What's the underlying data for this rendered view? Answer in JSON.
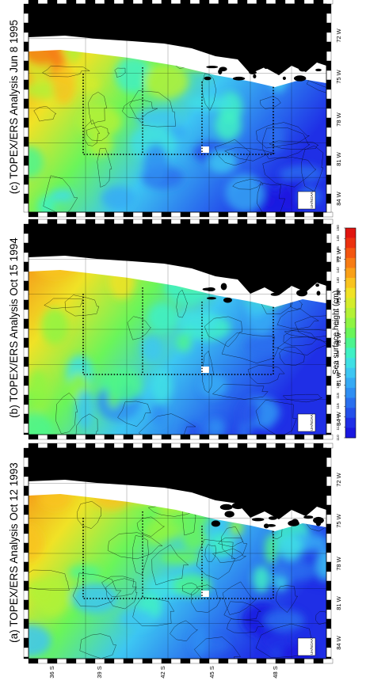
{
  "panels": [
    {
      "title": "(c) TOPEX/ERS Analysis Jun 8 1995"
    },
    {
      "title": "(b) TOPEX/ERS Analysis Oct 15 1994"
    },
    {
      "title": "(a) TOPEX/ERS Analysis Oct 12 1993"
    }
  ],
  "longitude_labels": [
    "72 W",
    "75 W",
    "78 W",
    "81 W",
    "84 W"
  ],
  "latitude_labels": [
    "36 S",
    "39 S",
    "42 S",
    "45 S",
    "48 S"
  ],
  "logo_text": "UH/NOAA",
  "colorbar": {
    "title": "Sea surface height (cm)",
    "ticks": [
      "110",
      "112",
      "114",
      "116",
      "118",
      "120",
      "122",
      "124",
      "126",
      "128",
      "130",
      "132",
      "134",
      "136",
      "138",
      "140",
      "142",
      "144",
      "146",
      "148",
      "150"
    ],
    "colors": [
      "#1a17e0",
      "#1f2fe6",
      "#2450ea",
      "#2a6fee",
      "#2f8ef2",
      "#36aaf4",
      "#3dc6f2",
      "#3fdfe4",
      "#3ff0c4",
      "#4cf48e",
      "#6af55a",
      "#8ef443",
      "#b3f136",
      "#d4ec2c",
      "#f0e226",
      "#f8c31f",
      "#f9a018",
      "#f77c14",
      "#f35611",
      "#eb310f",
      "#e01510"
    ],
    "range": [
      110,
      150
    ]
  },
  "map_style": {
    "land_color": "#000000",
    "missing_color": "#ffffff",
    "box_color": "#000000"
  }
}
